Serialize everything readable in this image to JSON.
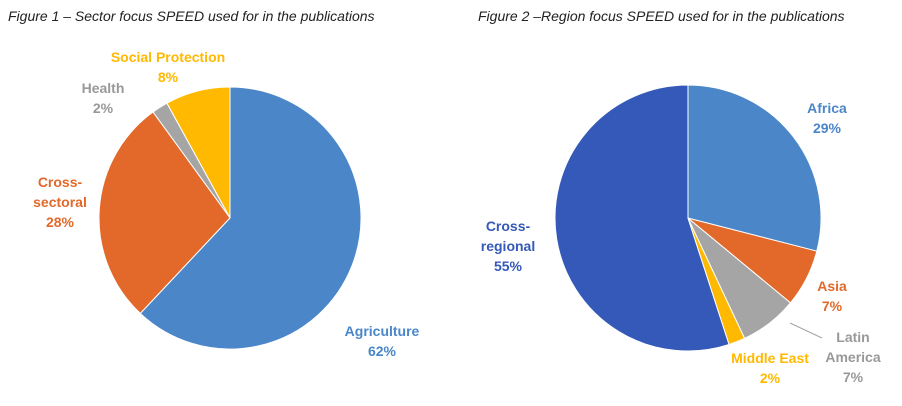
{
  "chart_data": [
    {
      "type": "pie",
      "title": "Figure 1 – Sector focus SPEED used for in the publications",
      "categories": [
        "Agriculture",
        "Cross-sectoral",
        "Health",
        "Social Protection"
      ],
      "values": [
        62,
        28,
        2,
        8
      ],
      "value_labels": [
        "62%",
        "28%",
        "2%",
        "8%"
      ],
      "colors": [
        "#4a86c8",
        "#e2692a",
        "#a5a5a5",
        "#ffb900"
      ]
    },
    {
      "type": "pie",
      "title": "Figure 2 –Region focus SPEED used for in the publications",
      "categories": [
        "Africa",
        "Asia",
        "Latin America",
        "Middle East",
        "Cross-regional"
      ],
      "values": [
        29,
        7,
        7,
        2,
        55
      ],
      "value_labels": [
        "29%",
        "7%",
        "7%",
        "2%",
        "55%"
      ],
      "colors": [
        "#4a86c8",
        "#e2692a",
        "#a5a5a5",
        "#ffb900",
        "#3459b8"
      ]
    }
  ]
}
